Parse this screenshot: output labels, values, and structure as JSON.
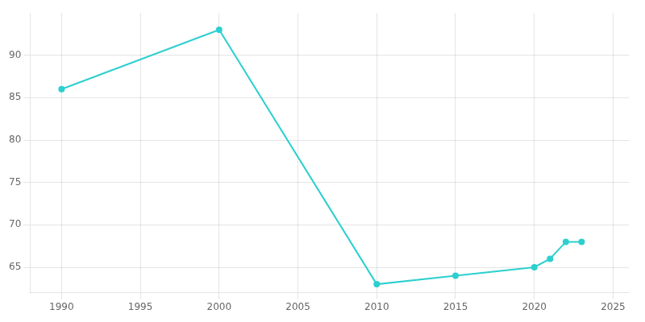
{
  "chart_data": {
    "type": "line",
    "x": [
      1990,
      2000,
      2010,
      2015,
      2020,
      2021,
      2022,
      2023
    ],
    "values": [
      86,
      93,
      63,
      64,
      65,
      66,
      68,
      68
    ],
    "color": "#2dcfcf",
    "marker": "circle",
    "xlim": [
      1988,
      2026
    ],
    "ylim": [
      62,
      95
    ],
    "xticks": [
      1990,
      1995,
      2000,
      2005,
      2010,
      2015,
      2020,
      2025
    ],
    "yticks": [
      65,
      70,
      75,
      80,
      85,
      90
    ],
    "grid": true
  }
}
